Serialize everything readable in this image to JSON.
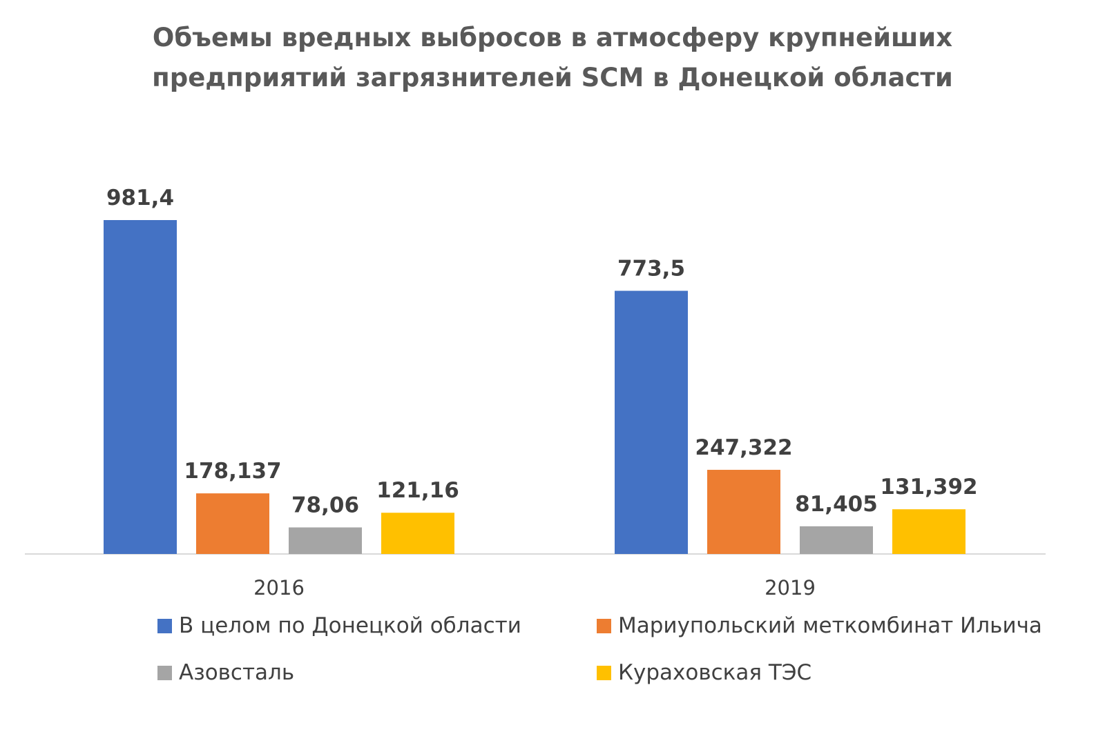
{
  "chart_data": {
    "type": "bar",
    "title": [
      "Объемы вредных выбросов в атмосферу крупнейших",
      "предприятий загрязнителей SCM в Донецкой области"
    ],
    "categories": [
      "2016",
      "2019"
    ],
    "series": [
      {
        "name": "В целом по Донецкой области",
        "color": "#4472C4",
        "values": [
          981.4,
          773.5
        ],
        "labels": [
          "981,4",
          "773,5"
        ]
      },
      {
        "name": "Мариупольский меткомбинат Ильича",
        "color": "#ED7D31",
        "values": [
          178.137,
          247.322
        ],
        "labels": [
          "178,137",
          "247,322"
        ]
      },
      {
        "name": "Азовсталь",
        "color": "#A5A5A5",
        "values": [
          78.06,
          81.405
        ],
        "labels": [
          "78,06",
          "81,405"
        ]
      },
      {
        "name": "Кураховская ТЭС",
        "color": "#FFC000",
        "values": [
          121.16,
          131.392
        ],
        "labels": [
          "121,16",
          "131,392"
        ]
      }
    ],
    "ylim": [
      0,
      1000
    ],
    "xlabel": "",
    "ylabel": "",
    "grid": false,
    "legend_position": "bottom"
  }
}
